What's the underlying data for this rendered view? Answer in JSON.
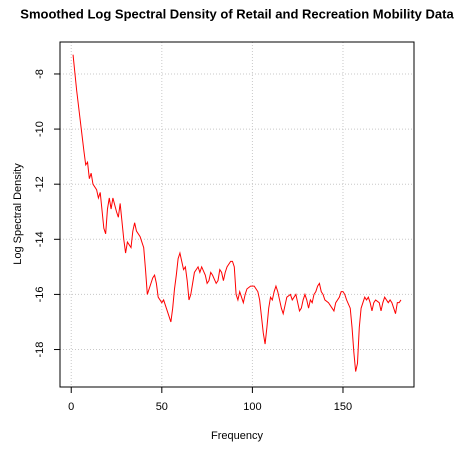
{
  "chart_data": {
    "type": "line",
    "title": "Smoothed Log Spectral Density of Retail and Recreation Mobility Data",
    "xlabel": "Frequency",
    "ylabel": "Log Spectral Density",
    "x": [
      1,
      3,
      5,
      7,
      8,
      9,
      10,
      11,
      12,
      14,
      15,
      16,
      18,
      19,
      20,
      21,
      22,
      23,
      25,
      26,
      27,
      29,
      30,
      31,
      33,
      34,
      35,
      36,
      38,
      40,
      41,
      42,
      44,
      45,
      46,
      47,
      48,
      50,
      51,
      53,
      55,
      56,
      57,
      58,
      59,
      60,
      61,
      62,
      63,
      64,
      65,
      66,
      67,
      68,
      69,
      70,
      71,
      72,
      74,
      75,
      76,
      77,
      78,
      80,
      81,
      82,
      83,
      84,
      85,
      86,
      87,
      88,
      89,
      90,
      91,
      92,
      93,
      94,
      95,
      96,
      97,
      99,
      101,
      103,
      104,
      105,
      106,
      107,
      108,
      109,
      110,
      111,
      112,
      113,
      114,
      115,
      116,
      117,
      118,
      119,
      121,
      122,
      124,
      125,
      126,
      127,
      128,
      129,
      130,
      131,
      132,
      133,
      134,
      135,
      136,
      137,
      138,
      139,
      140,
      142,
      144,
      145,
      146,
      148,
      149,
      150,
      151,
      152,
      154,
      155,
      156,
      157,
      158,
      159,
      160,
      161,
      162,
      163,
      164,
      165,
      166,
      167,
      168,
      170,
      171,
      172,
      173,
      174,
      175,
      176,
      177,
      178,
      179,
      180,
      181,
      182
    ],
    "series": [
      {
        "name": "Log Spectral Density",
        "color": "#ff0000",
        "values": [
          -7.3,
          -8.6,
          -9.7,
          -10.8,
          -11.3,
          -11.2,
          -11.8,
          -11.6,
          -12.0,
          -12.2,
          -12.5,
          -12.3,
          -13.6,
          -13.8,
          -12.9,
          -12.5,
          -12.9,
          -12.5,
          -13.0,
          -13.2,
          -12.7,
          -14.0,
          -14.5,
          -14.1,
          -14.3,
          -13.7,
          -13.4,
          -13.7,
          -13.9,
          -14.3,
          -15.1,
          -16.0,
          -15.6,
          -15.4,
          -15.3,
          -15.6,
          -16.1,
          -16.3,
          -16.2,
          -16.6,
          -17.0,
          -16.5,
          -15.8,
          -15.3,
          -14.7,
          -14.5,
          -14.8,
          -15.1,
          -15.0,
          -15.5,
          -16.2,
          -16.0,
          -15.6,
          -15.2,
          -15.1,
          -15.0,
          -15.2,
          -15.0,
          -15.3,
          -15.6,
          -15.5,
          -15.2,
          -15.3,
          -15.6,
          -15.5,
          -15.1,
          -15.2,
          -15.5,
          -15.2,
          -15.0,
          -14.9,
          -14.8,
          -14.8,
          -15.0,
          -16.0,
          -16.2,
          -15.9,
          -16.1,
          -16.3,
          -16.0,
          -15.8,
          -15.7,
          -15.7,
          -15.9,
          -16.2,
          -16.8,
          -17.4,
          -17.8,
          -17.2,
          -16.5,
          -16.1,
          -16.2,
          -15.9,
          -15.7,
          -15.9,
          -16.2,
          -16.5,
          -16.7,
          -16.4,
          -16.1,
          -16.0,
          -16.2,
          -16.0,
          -16.3,
          -16.6,
          -16.5,
          -16.2,
          -16.0,
          -16.2,
          -16.5,
          -16.2,
          -16.3,
          -16.0,
          -15.9,
          -15.7,
          -15.6,
          -15.9,
          -16.0,
          -16.2,
          -16.3,
          -16.5,
          -16.6,
          -16.3,
          -16.1,
          -15.9,
          -15.9,
          -16.0,
          -16.2,
          -16.5,
          -17.2,
          -18.1,
          -18.8,
          -18.5,
          -17.2,
          -16.5,
          -16.3,
          -16.1,
          -16.2,
          -16.1,
          -16.3,
          -16.6,
          -16.3,
          -16.2,
          -16.3,
          -16.6,
          -16.3,
          -16.1,
          -16.2,
          -16.3,
          -16.2,
          -16.3,
          -16.5,
          -16.7,
          -16.3,
          -16.3,
          -16.2
        ]
      }
    ],
    "xlim": [
      -6.2,
      189.2
    ],
    "xticks": [
      0,
      50,
      100,
      150
    ],
    "ylim": [
      -19.36,
      -6.84
    ],
    "yticks": [
      -18,
      -16,
      -14,
      -12,
      -10,
      -8
    ],
    "grid": true
  }
}
